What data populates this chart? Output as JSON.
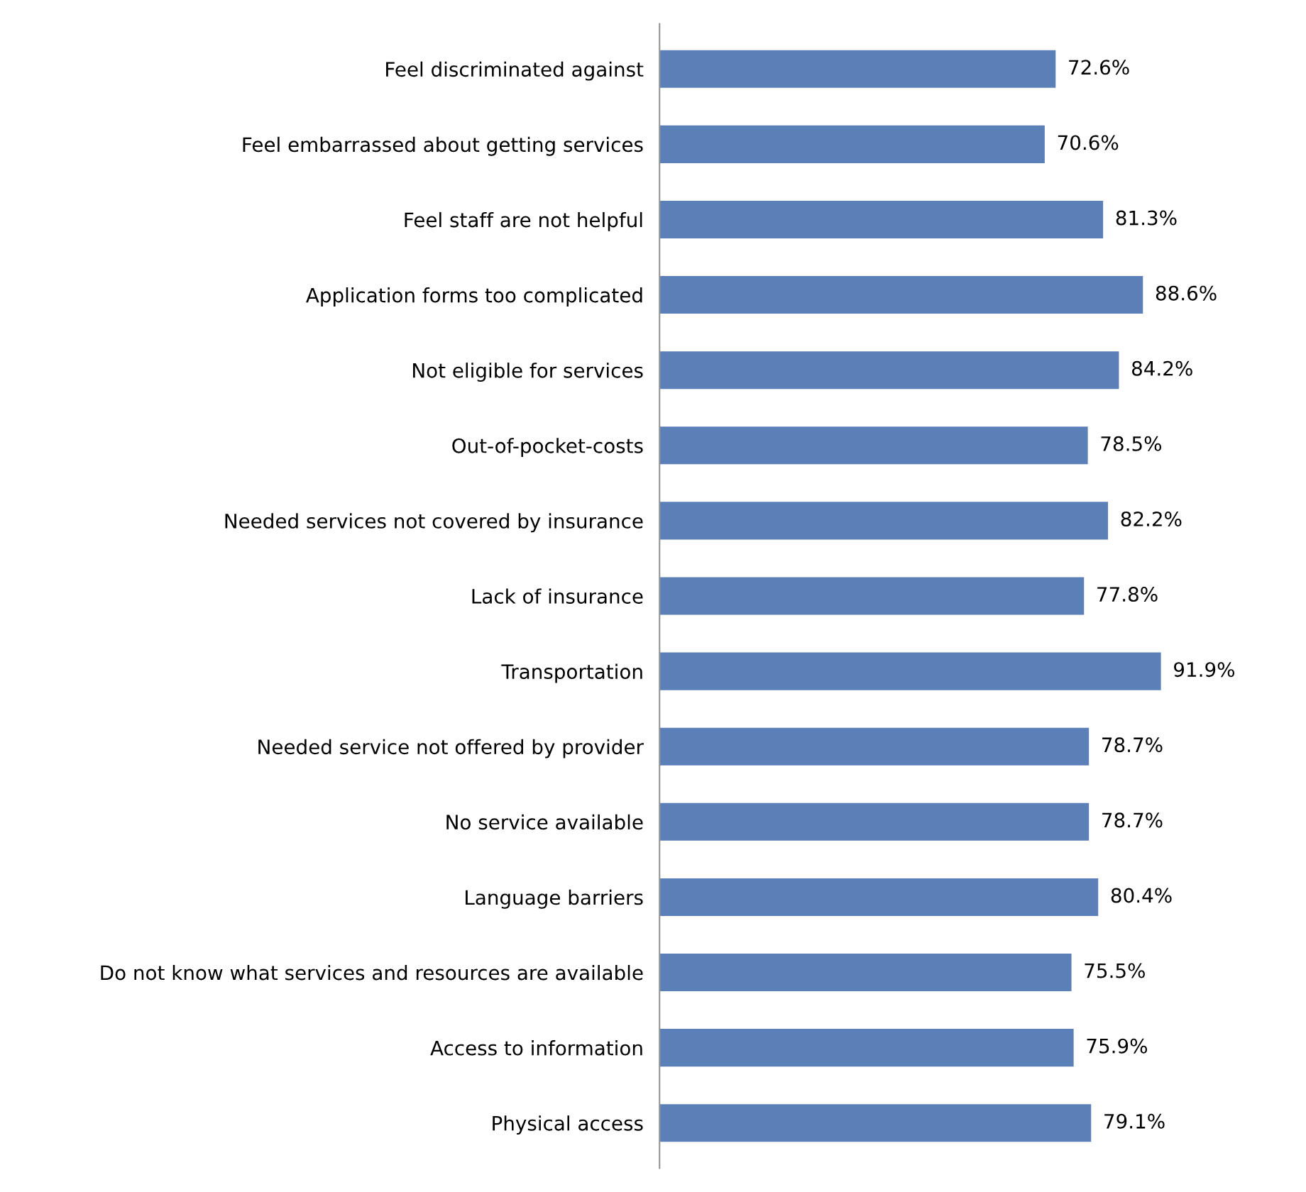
{
  "chart_data": {
    "type": "bar",
    "orientation": "horizontal",
    "categories": [
      "Feel discriminated against",
      "Feel embarrassed about getting services",
      "Feel staff are not helpful",
      "Application forms too complicated",
      "Not eligible for services",
      "Out-of-pocket-costs",
      "Needed services not covered by insurance",
      "Lack of insurance",
      "Transportation",
      "Needed service not offered by provider",
      "No service available",
      "Language barriers",
      "Do not know what services and resources are available",
      "Access to information",
      "Physical access"
    ],
    "values": [
      72.6,
      70.6,
      81.3,
      88.6,
      84.2,
      78.5,
      82.2,
      77.8,
      91.9,
      78.7,
      78.7,
      80.4,
      75.5,
      75.9,
      79.1
    ],
    "value_labels": [
      "72.6%",
      "70.6%",
      "81.3%",
      "88.6%",
      "84.2%",
      "78.5%",
      "82.2%",
      "77.8%",
      "91.9%",
      "78.7%",
      "78.7%",
      "80.4%",
      "75.5%",
      "75.9%",
      "79.1%"
    ],
    "color": "#5b80b8",
    "grid": false,
    "legend": false,
    "tick_labels": "y"
  }
}
